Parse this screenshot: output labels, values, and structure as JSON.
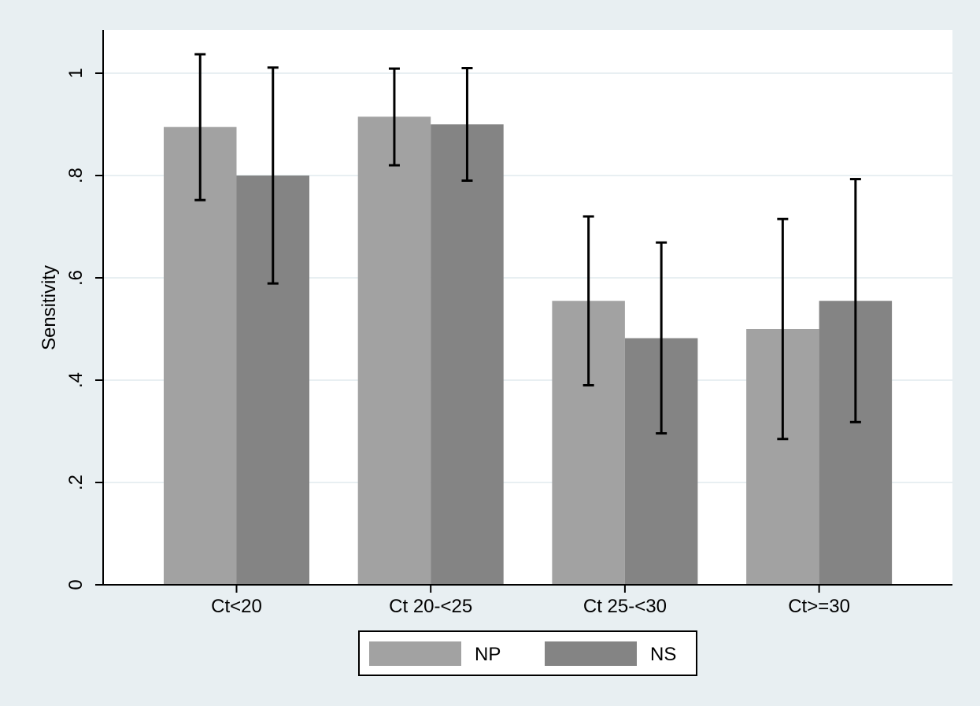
{
  "chart_data": {
    "type": "bar",
    "title": "",
    "xlabel": "",
    "ylabel": "Sensitivity",
    "ylim": [
      0,
      1.08
    ],
    "yticks": [
      0,
      0.2,
      0.4,
      0.6,
      0.8,
      1
    ],
    "ytick_labels": [
      "0",
      ".2",
      ".4",
      ".6",
      ".8",
      "1"
    ],
    "categories": [
      "Ct<20",
      "Ct 20-<25",
      "Ct 25-<30",
      "Ct>=30"
    ],
    "series": [
      {
        "name": "NP",
        "color": "#a2a2a2",
        "values": [
          0.895,
          0.915,
          0.555,
          0.5
        ],
        "ci_low": [
          0.752,
          0.82,
          0.39,
          0.285
        ],
        "ci_high": [
          1.037,
          1.009,
          0.72,
          0.715
        ]
      },
      {
        "name": "NS",
        "color": "#848484",
        "values": [
          0.8,
          0.9,
          0.482,
          0.555
        ],
        "ci_low": [
          0.589,
          0.79,
          0.296,
          0.318
        ],
        "ci_high": [
          1.011,
          1.01,
          0.669,
          0.793
        ]
      }
    ],
    "grid": true,
    "legend_position": "bottom",
    "colors": {
      "outer_background": "#e8eff2",
      "plot_background": "#ffffff",
      "grid": "#e8eff2"
    }
  }
}
